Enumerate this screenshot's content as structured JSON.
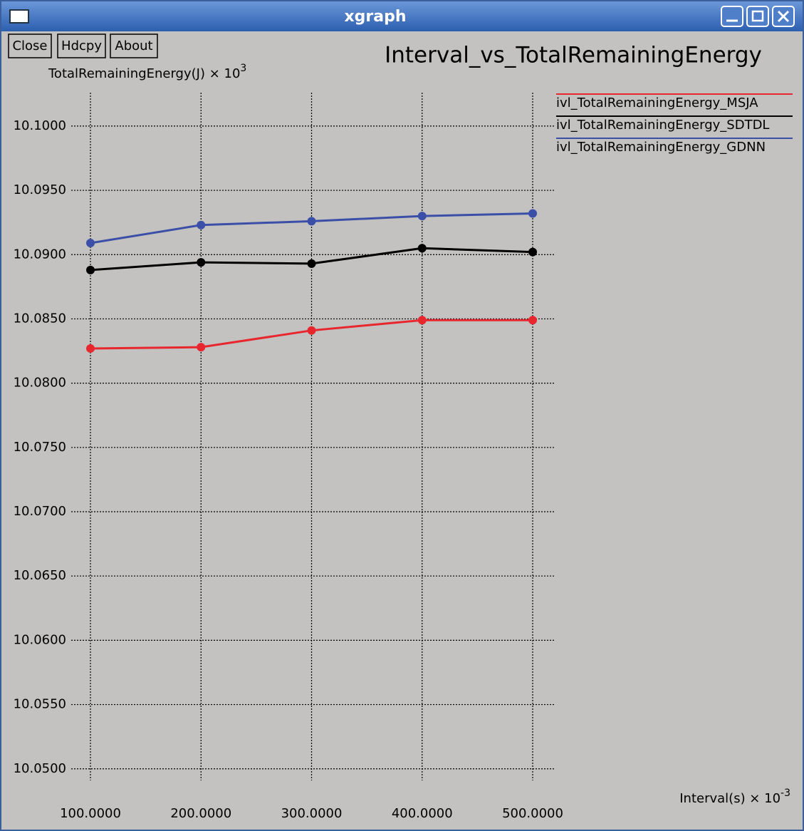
{
  "window": {
    "title": "xgraph",
    "buttons": [
      "Close",
      "Hdcpy",
      "About"
    ]
  },
  "chart_data": {
    "type": "line",
    "title": "Interval_vs_TotalRemainingEnergy",
    "y_label": "TotalRemainingEnergy(J) × 10",
    "y_label_exponent": "3",
    "x_label": "Interval(s) × 10",
    "x_label_exponent": "-3",
    "x": [
      100,
      200,
      300,
      400,
      500
    ],
    "series": [
      {
        "name": "ivl_TotalRemainingEnergy_MSJA",
        "color": "#e8262e",
        "values": [
          10.0827,
          10.0828,
          10.0841,
          10.0849,
          10.0849
        ]
      },
      {
        "name": "ivl_TotalRemainingEnergy_SDTDL",
        "color": "#000000",
        "values": [
          10.0888,
          10.0894,
          10.0893,
          10.0905,
          10.0902
        ]
      },
      {
        "name": "ivl_TotalRemainingEnergy_GDNN",
        "color": "#3b4fa8",
        "values": [
          10.0909,
          10.0923,
          10.0926,
          10.093,
          10.0932
        ]
      }
    ],
    "xlim": [
      82.6,
      520.6
    ],
    "ylim": [
      10.0491,
      10.1026
    ],
    "xticks": [
      {
        "value": 100,
        "label": "100.0000"
      },
      {
        "value": 200,
        "label": "200.0000"
      },
      {
        "value": 300,
        "label": "300.0000"
      },
      {
        "value": 400,
        "label": "400.0000"
      },
      {
        "value": 500,
        "label": "500.0000"
      }
    ],
    "yticks": [
      {
        "value": 10.05,
        "label": "10.0500"
      },
      {
        "value": 10.055,
        "label": "10.0550"
      },
      {
        "value": 10.06,
        "label": "10.0600"
      },
      {
        "value": 10.065,
        "label": "10.0650"
      },
      {
        "value": 10.07,
        "label": "10.0700"
      },
      {
        "value": 10.075,
        "label": "10.0750"
      },
      {
        "value": 10.08,
        "label": "10.0800"
      },
      {
        "value": 10.085,
        "label": "10.0850"
      },
      {
        "value": 10.09,
        "label": "10.0900"
      },
      {
        "value": 10.095,
        "label": "10.0950"
      },
      {
        "value": 10.1,
        "label": "10.1000"
      }
    ],
    "grid": true
  }
}
